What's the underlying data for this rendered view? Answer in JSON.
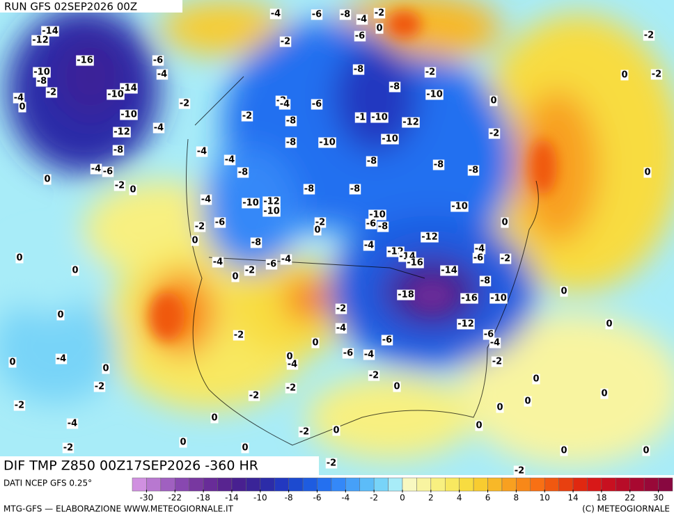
{
  "header": {
    "run": "RUN GFS 02SEP2026 00Z",
    "title": "DIF TMP Z850 00Z17SEP2026 -360 HR"
  },
  "footer": {
    "source": "DATI NCEP GFS 0.25°",
    "credit": "MTG-GFS — ELABORAZIONE WWW.METEOGIORNALE.IT",
    "copyright": "(C) METEOGIORNALE"
  },
  "colorbar": {
    "colors": [
      "#d090e0",
      "#b878d0",
      "#a060c0",
      "#8848b0",
      "#7838a0",
      "#682c98",
      "#582490",
      "#482090",
      "#3a2498",
      "#2c2ca8",
      "#2238c0",
      "#1c4ad0",
      "#1e5ce0",
      "#2470f0",
      "#3488f8",
      "#46a0f8",
      "#5cbcf8",
      "#78d4f8",
      "#a8ecf8",
      "#f8f8c0",
      "#f8f4a0",
      "#f8f080",
      "#f8e860",
      "#f8dc40",
      "#f8cc30",
      "#f8b828",
      "#f8a020",
      "#f88818",
      "#f87014",
      "#f05810",
      "#e84010",
      "#e02810",
      "#d81818",
      "#c81020",
      "#b80c28",
      "#a80830",
      "#980838",
      "#880840"
    ],
    "ticks": [
      -30,
      -22,
      -18,
      -14,
      -10,
      -8,
      -6,
      -4,
      -2,
      0,
      2,
      4,
      6,
      8,
      10,
      14,
      18,
      22,
      30
    ]
  },
  "contour_labels": [
    -14,
    -12,
    -16,
    -6,
    -10,
    -8,
    -4,
    -2,
    -4,
    0,
    -14,
    -10,
    -2,
    -10,
    -12,
    -4,
    -8,
    -4,
    -6,
    0,
    -2,
    0,
    -4,
    -4,
    -8,
    -4,
    -2,
    -6,
    0,
    0,
    0,
    0,
    0,
    -4,
    0,
    -2,
    -2,
    -4,
    -2,
    0,
    -4,
    -6,
    -8,
    -4,
    -2,
    -6,
    0,
    -2,
    -2,
    -2,
    -4,
    -6,
    -8,
    -8,
    -10,
    -1,
    -10,
    -12,
    -8,
    -8,
    -2,
    -10,
    0,
    -2,
    -10,
    -8,
    -8,
    -8,
    -8,
    -8,
    -10,
    -12,
    -10,
    -10,
    -6,
    -8,
    -2,
    0,
    -12,
    -10,
    0,
    -8,
    -4,
    -6,
    -4,
    -2,
    -4,
    -12,
    -14,
    -16,
    -14,
    -4,
    -6,
    -2,
    -8,
    -18,
    -16,
    -10,
    0,
    -12,
    -6,
    -4,
    -2,
    0,
    -2,
    -4,
    0,
    -6,
    -6,
    -4,
    0,
    -2,
    0,
    -4,
    -2,
    0,
    0,
    0,
    0,
    0,
    -2,
    -2,
    0,
    0,
    -2,
    0,
    0,
    0,
    0,
    -2,
    -2,
    0,
    0,
    -2,
    -2
  ]
}
